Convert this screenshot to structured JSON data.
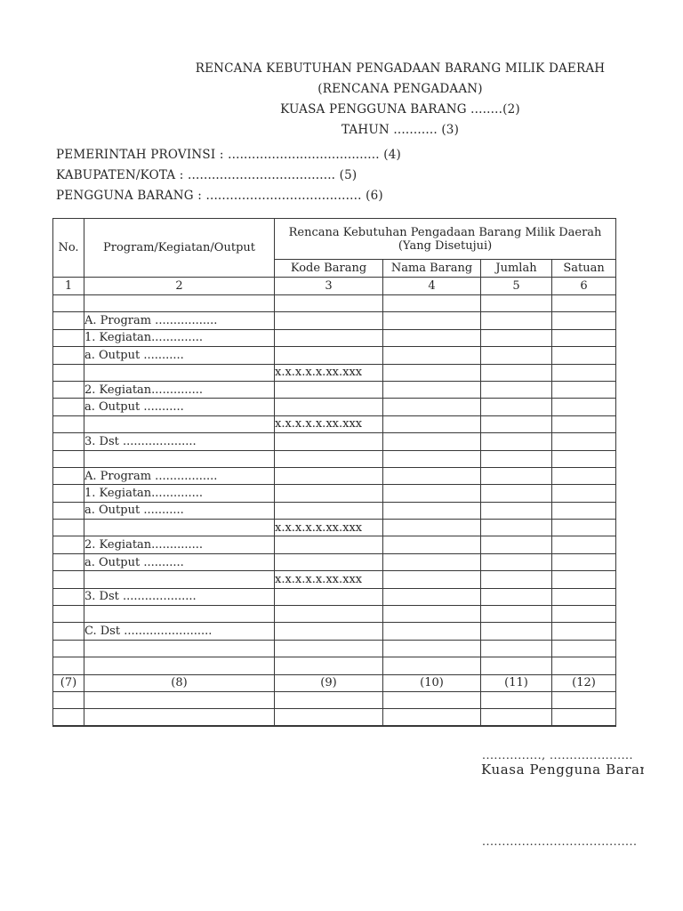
{
  "colors": {
    "background": "#ffffff",
    "text": "#262626",
    "table_border": "#383838"
  },
  "header": {
    "title_lines": [
      "RENCANA KEBUTUHAN PENGADAAN BARANG MILIK DAERAH",
      "(RENCANA PENGADAAN)",
      "KUASA PENGGUNA BARANG ........(2)",
      "TAHUN ........... (3)"
    ],
    "info_lines": [
      "PEMERINTAH PROVINSI : ...................................... (4)",
      "KABUPATEN/KOTA : ..................................... (5)",
      "PENGGUNA BARANG : ....................................... (6)"
    ]
  },
  "table": {
    "header": {
      "col_no": "No.",
      "col_program": "Program/Kegiatan/Output",
      "group_title_line1": "Rencana Kebutuhan Pengadaan Barang Milik Daerah",
      "group_title_line2": "(Yang Disetujui)",
      "sub_cols": [
        "Kode Barang",
        "Nama Barang",
        "Jumlah",
        "Satuan"
      ],
      "number_row": [
        "1",
        "2",
        "3",
        "4",
        "5",
        "6"
      ]
    },
    "rows": [
      {
        "cells": [
          "",
          "",
          "",
          "",
          "",
          ""
        ]
      },
      {
        "cells": [
          "",
          "A. Program  .................",
          "",
          "",
          "",
          ""
        ],
        "indent": 0
      },
      {
        "cells": [
          "",
          "1. Kegiatan..............",
          "",
          "",
          "",
          ""
        ],
        "indent": 1
      },
      {
        "cells": [
          "",
          "a. Output  ...........",
          "",
          "",
          "",
          ""
        ],
        "indent": 2
      },
      {
        "cells": [
          "",
          "",
          "x.x.x.x.x.xx.xxx",
          "",
          "",
          ""
        ]
      },
      {
        "cells": [
          "",
          "2. Kegiatan..............",
          "",
          "",
          "",
          ""
        ],
        "indent": 1
      },
      {
        "cells": [
          "",
          "a. Output  ...........",
          "",
          "",
          "",
          ""
        ],
        "indent": 2
      },
      {
        "cells": [
          "",
          "",
          "x.x.x.x.x.xx.xxx",
          "",
          "",
          ""
        ]
      },
      {
        "cells": [
          "",
          "3. Dst  ....................",
          "",
          "",
          "",
          ""
        ],
        "indent": 1
      },
      {
        "cells": [
          "",
          "",
          "",
          "",
          "",
          ""
        ]
      },
      {
        "cells": [
          "",
          "A. Program  .................",
          "",
          "",
          "",
          ""
        ],
        "indent": 0
      },
      {
        "cells": [
          "",
          "1. Kegiatan..............",
          "",
          "",
          "",
          ""
        ],
        "indent": 1
      },
      {
        "cells": [
          "",
          "a. Output  ...........",
          "",
          "",
          "",
          ""
        ],
        "indent": 2
      },
      {
        "cells": [
          "",
          "",
          "x.x.x.x.x.xx.xxx",
          "",
          "",
          ""
        ]
      },
      {
        "cells": [
          "",
          "2. Kegiatan..............",
          "",
          "",
          "",
          ""
        ],
        "indent": 1
      },
      {
        "cells": [
          "",
          "a. Output  ...........",
          "",
          "",
          "",
          ""
        ],
        "indent": 2
      },
      {
        "cells": [
          "",
          "",
          "x.x.x.x.x.xx.xxx",
          "",
          "",
          ""
        ]
      },
      {
        "cells": [
          "",
          "3. Dst  ....................",
          "",
          "",
          "",
          ""
        ],
        "indent": 1
      },
      {
        "cells": [
          "",
          "",
          "",
          "",
          "",
          ""
        ]
      },
      {
        "cells": [
          "",
          "C. Dst  ........................",
          "",
          "",
          "",
          ""
        ],
        "indent": 0
      },
      {
        "cells": [
          "",
          "",
          "",
          "",
          "",
          ""
        ]
      },
      {
        "cells": [
          "",
          "",
          "",
          "",
          "",
          ""
        ]
      },
      {
        "cells": [
          "(7)",
          "(8)",
          "(9)",
          "(10)",
          "(11)",
          "(12)"
        ],
        "center": true,
        "thick": true
      },
      {
        "cells": [
          "",
          "",
          "",
          "",
          "",
          ""
        ]
      },
      {
        "cells": [
          "",
          "",
          "",
          "",
          "",
          ""
        ]
      }
    ]
  },
  "signature": {
    "place_date_dots": "...............,  .....................",
    "role_label": "Kuasa Pengguna Barang",
    "name_dots": "......................................."
  }
}
